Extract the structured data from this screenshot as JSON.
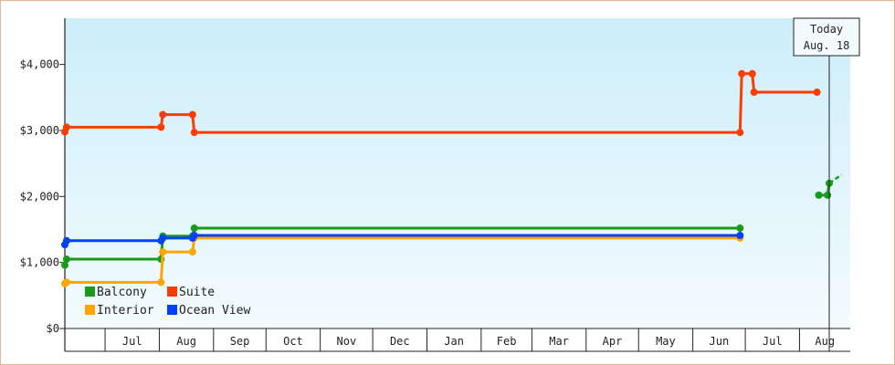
{
  "chart_data": {
    "type": "line",
    "step": true,
    "ylim": [
      0,
      4700
    ],
    "y_ticks": [
      {
        "value": 0,
        "label": "$0"
      },
      {
        "value": 1000,
        "label": "$1,000"
      },
      {
        "value": 2000,
        "label": "$2,000"
      },
      {
        "value": 3000,
        "label": "$3,000"
      },
      {
        "value": 4000,
        "label": "$4,000"
      }
    ],
    "x_start": "2023-06-08",
    "x_end": "2024-08-30",
    "x_months": [
      {
        "label": "Jul",
        "start": "2023-07-01"
      },
      {
        "label": "Aug",
        "start": "2023-08-01"
      },
      {
        "label": "Sep",
        "start": "2023-09-01"
      },
      {
        "label": "Oct",
        "start": "2023-10-01"
      },
      {
        "label": "Nov",
        "start": "2023-11-01"
      },
      {
        "label": "Dec",
        "start": "2023-12-01"
      },
      {
        "label": "Jan",
        "start": "2024-01-01"
      },
      {
        "label": "Feb",
        "start": "2024-02-01"
      },
      {
        "label": "Mar",
        "start": "2024-03-01"
      },
      {
        "label": "Apr",
        "start": "2024-04-01"
      },
      {
        "label": "May",
        "start": "2024-05-01"
      },
      {
        "label": "Jun",
        "start": "2024-06-01"
      },
      {
        "label": "Jul",
        "start": "2024-07-01"
      },
      {
        "label": "Aug",
        "start": "2024-08-01"
      }
    ],
    "today": {
      "date": "2024-08-18",
      "line1": "Today",
      "line2": "Aug. 18"
    },
    "series": [
      {
        "name": "Balcony",
        "color": "#1a9a1a",
        "points": [
          [
            "2023-06-08",
            960
          ],
          [
            "2023-06-09",
            1050
          ],
          [
            "2023-08-02",
            1050
          ],
          [
            "2023-08-03",
            1400
          ],
          [
            "2023-08-20",
            1400
          ],
          [
            "2023-08-21",
            1520
          ],
          [
            "2024-06-28",
            1520
          ]
        ]
      },
      {
        "name": "Suite",
        "color": "#ff3c00",
        "points": [
          [
            "2023-06-08",
            2980
          ],
          [
            "2023-06-09",
            3050
          ],
          [
            "2023-08-02",
            3050
          ],
          [
            "2023-08-03",
            3240
          ],
          [
            "2023-08-20",
            3240
          ],
          [
            "2023-08-21",
            2970
          ],
          [
            "2024-06-28",
            2970
          ],
          [
            "2024-06-29",
            3860
          ],
          [
            "2024-07-05",
            3860
          ],
          [
            "2024-07-06",
            3580
          ],
          [
            "2024-08-11",
            3580
          ]
        ]
      },
      {
        "name": "Interior",
        "color": "#ffa500",
        "points": [
          [
            "2023-06-08",
            680
          ],
          [
            "2023-06-09",
            700
          ],
          [
            "2023-08-02",
            700
          ],
          [
            "2023-08-03",
            1160
          ],
          [
            "2023-08-20",
            1160
          ],
          [
            "2023-08-21",
            1370
          ],
          [
            "2024-06-28",
            1370
          ]
        ]
      },
      {
        "name": "Ocean View",
        "color": "#0040ff",
        "points": [
          [
            "2023-06-08",
            1270
          ],
          [
            "2023-06-09",
            1330
          ],
          [
            "2023-08-02",
            1330
          ],
          [
            "2023-08-03",
            1370
          ],
          [
            "2023-08-20",
            1370
          ],
          [
            "2023-08-21",
            1410
          ],
          [
            "2024-06-28",
            1410
          ]
        ]
      }
    ],
    "extra_points": {
      "name": "Balcony",
      "color": "#1a9a1a",
      "points": [
        [
          "2024-08-12",
          2020
        ],
        [
          "2024-08-17",
          2020
        ],
        [
          "2024-08-18",
          2200
        ]
      ],
      "dashed_to": [
        "2024-08-25",
        2330
      ]
    },
    "legend": [
      {
        "name": "Balcony",
        "color": "#1a9a1a"
      },
      {
        "name": "Suite",
        "color": "#ff3c00"
      },
      {
        "name": "Interior",
        "color": "#ffa500"
      },
      {
        "name": "Ocean View",
        "color": "#0040ff"
      }
    ]
  }
}
